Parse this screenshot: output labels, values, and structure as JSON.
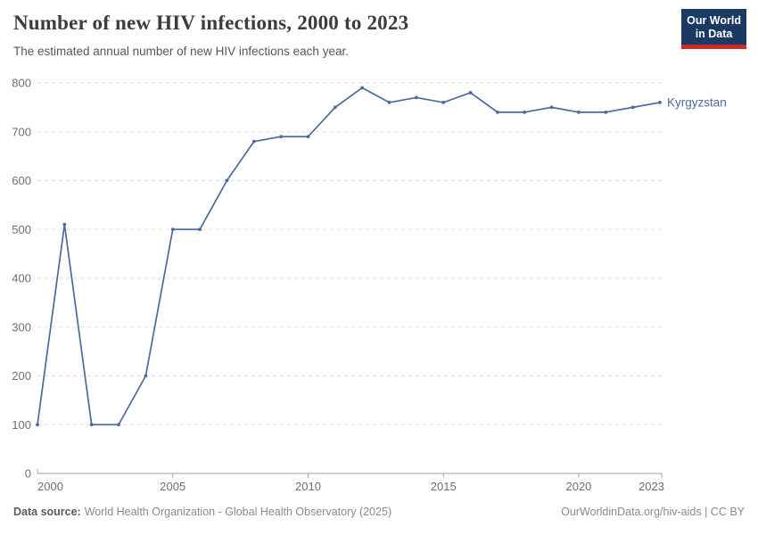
{
  "header": {
    "title": "Number of new HIV infections, 2000 to 2023",
    "subtitle": "The estimated annual number of new HIV infections each year.",
    "logo_line1": "Our World",
    "logo_line2": "in Data"
  },
  "chart_data": {
    "type": "line",
    "title": "Number of new HIV infections, 2000 to 2023",
    "x": [
      2000,
      2001,
      2002,
      2003,
      2004,
      2005,
      2006,
      2007,
      2008,
      2009,
      2010,
      2011,
      2012,
      2013,
      2014,
      2015,
      2016,
      2017,
      2018,
      2019,
      2020,
      2021,
      2022,
      2023
    ],
    "series": [
      {
        "name": "Kyrgyzstan",
        "color": "#4C6A9C",
        "values": [
          100,
          510,
          100,
          100,
          200,
          500,
          500,
          600,
          680,
          690,
          690,
          750,
          790,
          760,
          770,
          760,
          780,
          740,
          740,
          750,
          740,
          740,
          750,
          760
        ]
      }
    ],
    "xlabel": "",
    "ylabel": "",
    "ylim": [
      0,
      800
    ],
    "yticks": [
      0,
      100,
      200,
      300,
      400,
      500,
      600,
      700,
      800
    ],
    "xticks": [
      2000,
      2005,
      2010,
      2015,
      2020,
      2023
    ],
    "grid": "horizontal-dashed",
    "legend_position": "line-end-label"
  },
  "footer": {
    "source_label": "Data source:",
    "source_text": "World Health Organization - Global Health Observatory (2025)",
    "credit": "OurWorldinData.org/hiv-aids | CC BY"
  },
  "colors": {
    "line": "#4C6A9C",
    "grid": "#DEDEDE",
    "axis": "#A1A1A1",
    "tick_text": "#6E6E6E",
    "title_text": "#3C3C3C",
    "subtitle_text": "#565656",
    "footer_text": "#8A8A8A",
    "logo_bg": "#1A3A63",
    "logo_stripe": "#CE2B26"
  }
}
